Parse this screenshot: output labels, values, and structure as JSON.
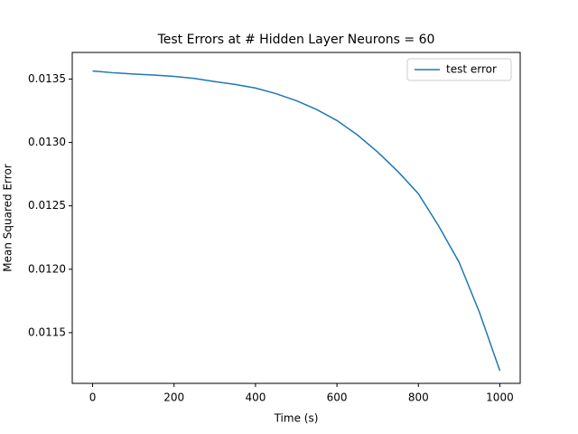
{
  "chart_data": {
    "type": "line",
    "title": "Test Errors at # Hidden Layer Neurons = 60",
    "x_label": "Time (s)",
    "y_label": "Mean Squared Error",
    "x": [
      0,
      50,
      100,
      150,
      200,
      250,
      300,
      350,
      400,
      450,
      500,
      550,
      600,
      650,
      700,
      750,
      800,
      850,
      900,
      950,
      1000
    ],
    "series": [
      {
        "name": "test error",
        "color": "#1f77b4",
        "values": [
          0.013564,
          0.01355,
          0.01354,
          0.013532,
          0.013521,
          0.013505,
          0.01348,
          0.013458,
          0.013429,
          0.013385,
          0.01333,
          0.01326,
          0.013173,
          0.01306,
          0.012924,
          0.01277,
          0.012596,
          0.01234,
          0.012055,
          0.01166,
          0.0112
        ]
      }
    ],
    "xlim": [
      -50,
      1050
    ],
    "ylim": [
      0.0111,
      0.01371
    ],
    "xticks": [
      0,
      200,
      400,
      600,
      800,
      1000
    ],
    "yticks": [
      0.0115,
      {
        "value": 0.012,
        "label": "0.0120"
      },
      0.0125,
      {
        "value": 0.013,
        "label": "0.0130"
      },
      0.0135
    ],
    "legend": "upper right"
  }
}
